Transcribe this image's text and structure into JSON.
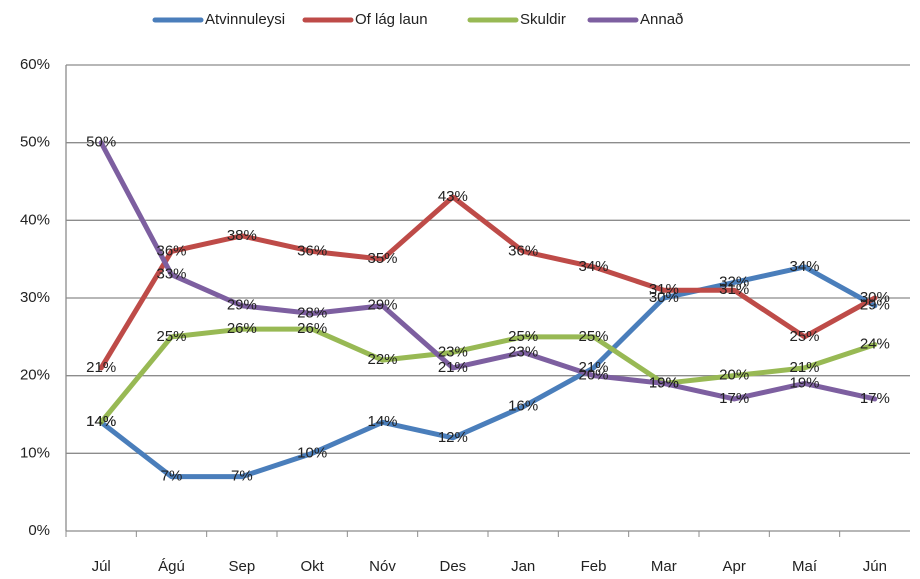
{
  "chart_data": {
    "type": "line",
    "categories": [
      "Júl",
      "Ágú",
      "Sep",
      "Okt",
      "Nóv",
      "Des",
      "Jan",
      "Feb",
      "Mar",
      "Apr",
      "Maí",
      "Jún"
    ],
    "series": [
      {
        "name": "Atvinnuleysi",
        "color": "#4a7ebb",
        "values": [
          14,
          7,
          7,
          10,
          14,
          12,
          16,
          21,
          30,
          32,
          34,
          29
        ],
        "value_labels": [
          "14%",
          "7%",
          "7%",
          "10%",
          "14%",
          "12%",
          "16%",
          "21%",
          "30%",
          "32%",
          "34%",
          "29%"
        ]
      },
      {
        "name": "Of lág laun",
        "color": "#be4b48",
        "values": [
          21,
          36,
          38,
          36,
          35,
          43,
          36,
          34,
          31,
          31,
          25,
          30
        ],
        "value_labels": [
          "21%",
          "36%",
          "38%",
          "36%",
          "35%",
          "43%",
          "36%",
          "34%",
          "31%",
          "31%",
          "25%",
          "30%"
        ]
      },
      {
        "name": "Skuldir",
        "color": "#98b954",
        "values": [
          14,
          25,
          26,
          26,
          22,
          23,
          25,
          25,
          19,
          20,
          21,
          24
        ],
        "value_labels": [
          "14%",
          "25%",
          "26%",
          "26%",
          "22%",
          "23%",
          "25%",
          "25%",
          "19%",
          "20%",
          "21%",
          "24%"
        ]
      },
      {
        "name": "Annað",
        "color": "#7d5fa0",
        "values": [
          50,
          33,
          29,
          28,
          29,
          21,
          23,
          20,
          19,
          17,
          19,
          17
        ],
        "value_labels": [
          "50%",
          "33%",
          "29%",
          "28%",
          "29%",
          "21%",
          "23%",
          "20%",
          "19%",
          "17%",
          "19%",
          "17%"
        ]
      }
    ],
    "ylim": [
      0,
      60
    ],
    "yticks": [
      {
        "value": 0,
        "label": "0%"
      },
      {
        "value": 10,
        "label": "10%"
      },
      {
        "value": 20,
        "label": "20%"
      },
      {
        "value": 30,
        "label": "30%"
      },
      {
        "value": 40,
        "label": "40%"
      },
      {
        "value": 50,
        "label": "50%"
      },
      {
        "value": 60,
        "label": "60%"
      }
    ],
    "grid": true,
    "legend": "top"
  }
}
